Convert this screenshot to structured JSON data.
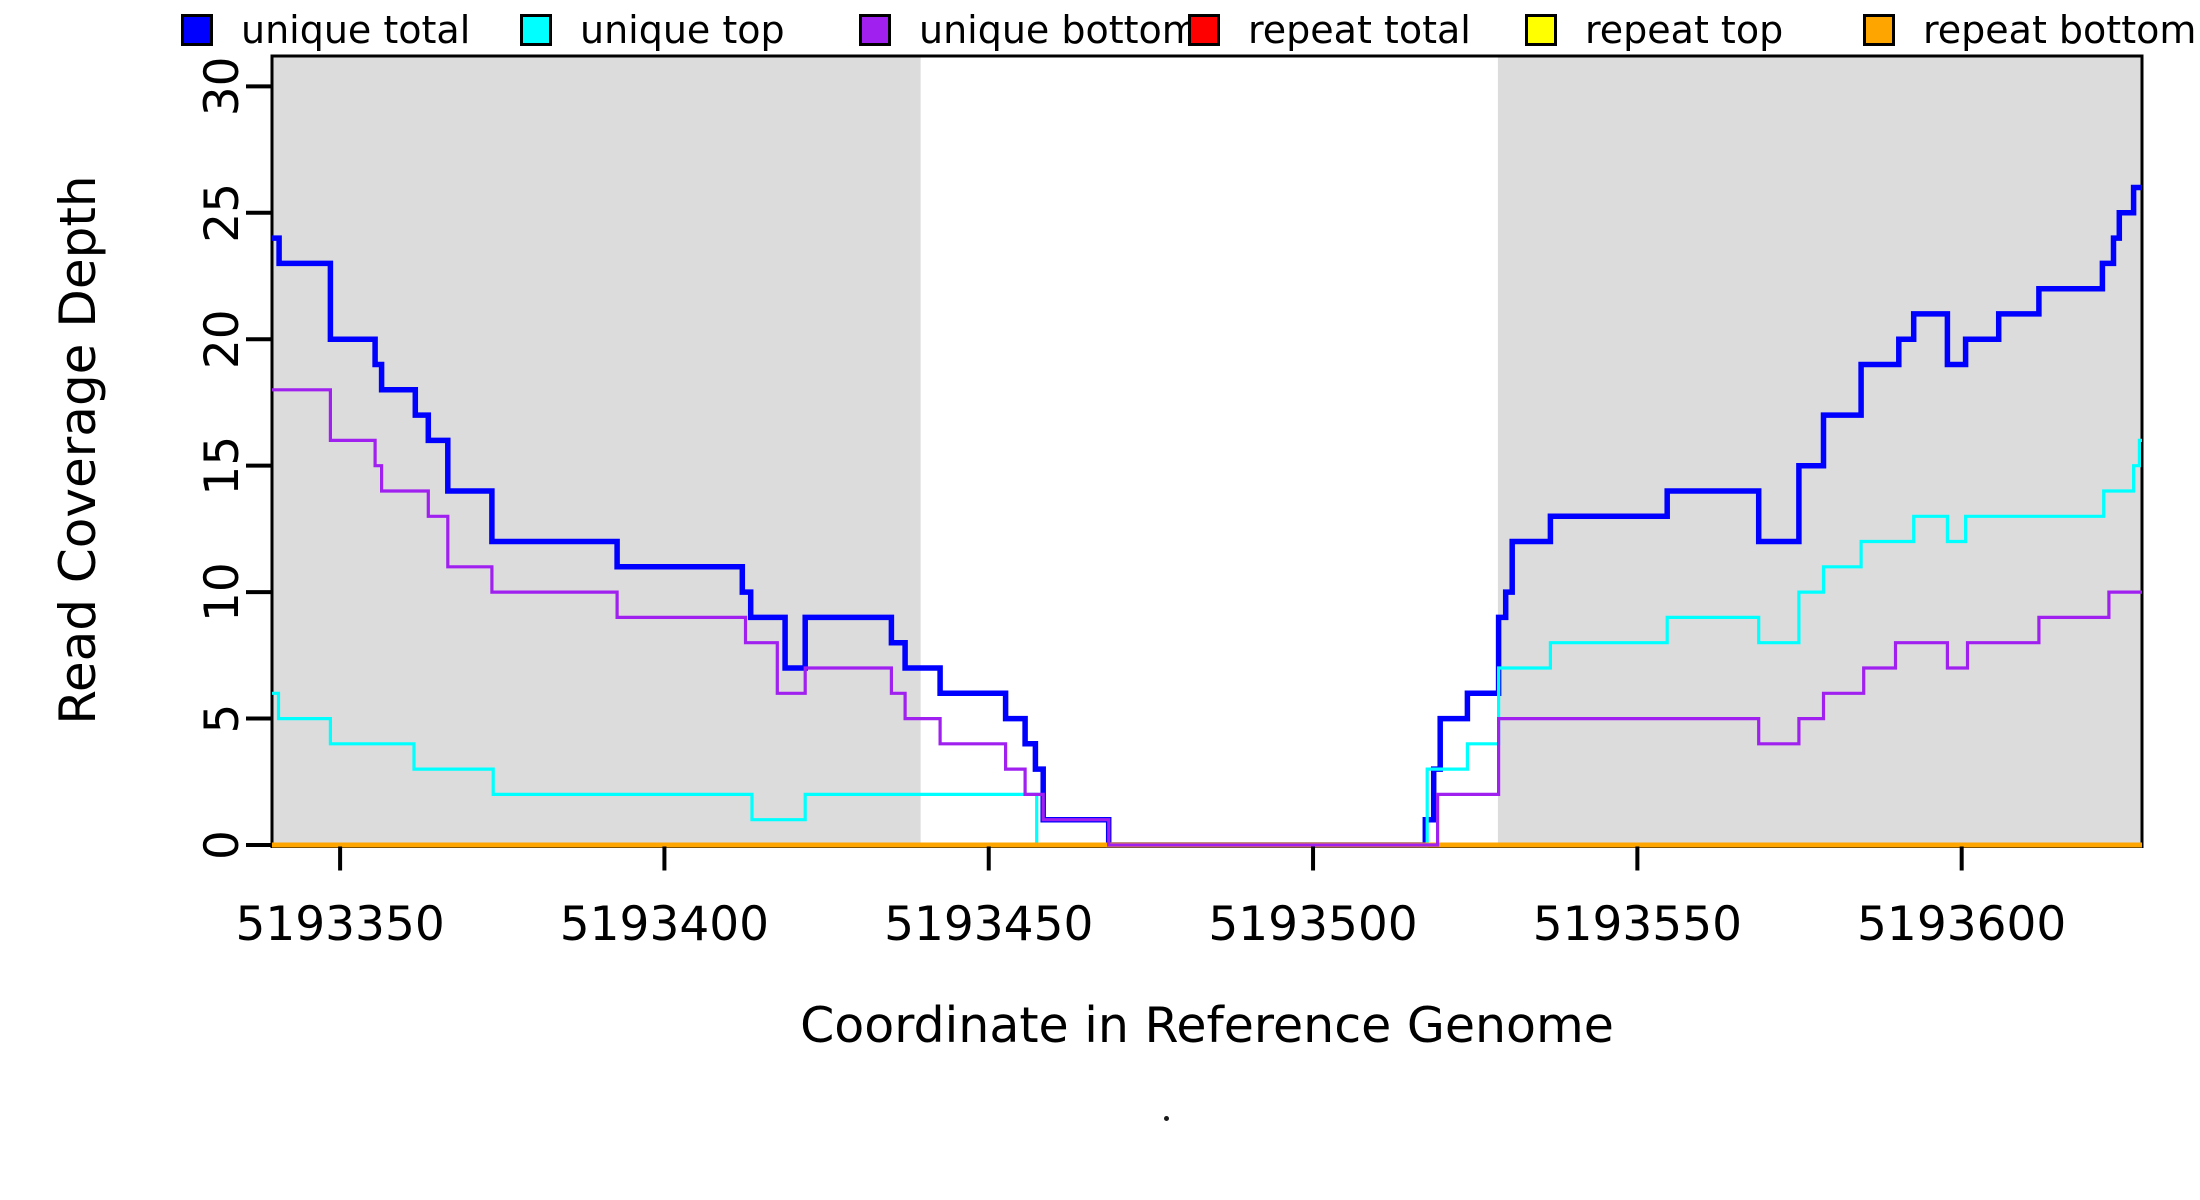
{
  "chart_data": {
    "type": "line",
    "line_style": "step",
    "title": "",
    "xlabel": "Coordinate in Reference Genome",
    "ylabel": "Read Coverage Depth",
    "xlim": [
      5193339.5,
      5193627.8
    ],
    "ylim": [
      0,
      31.2
    ],
    "x_ticks": [
      5193350,
      5193400,
      5193450,
      5193500,
      5193550,
      5193600
    ],
    "y_ticks": [
      0,
      5,
      10,
      15,
      20,
      25,
      30
    ],
    "grid": false,
    "legend_position": "bottom",
    "panel_border_color": "#000000",
    "shaded_region_color": "#dcdcdc",
    "shaded_regions": [
      [
        5193339.5,
        5193439.5
      ],
      [
        5193528.5,
        5193627.8
      ]
    ],
    "draw_order": [
      "unique total",
      "unique top",
      "repeat total",
      "repeat top",
      "repeat bottom",
      "unique bottom"
    ],
    "series": [
      {
        "name": "unique total",
        "color": "#0000ff",
        "line_width": 5.5,
        "points": [
          [
            5193339.5,
            24
          ],
          [
            5193340.6,
            23
          ],
          [
            5193348.5,
            20
          ],
          [
            5193355.4,
            19
          ],
          [
            5193356.4,
            18
          ],
          [
            5193361.6,
            17
          ],
          [
            5193363.6,
            16
          ],
          [
            5193366.6,
            14
          ],
          [
            5193373.4,
            12
          ],
          [
            5193392.7,
            11
          ],
          [
            5193412.0,
            10
          ],
          [
            5193413.3,
            9
          ],
          [
            5193418.6,
            7
          ],
          [
            5193421.7,
            9
          ],
          [
            5193435.0,
            8
          ],
          [
            5193437.1,
            7
          ],
          [
            5193442.5,
            6
          ],
          [
            5193452.6,
            5
          ],
          [
            5193455.6,
            4
          ],
          [
            5193457.2,
            3
          ],
          [
            5193458.4,
            1
          ],
          [
            5193468.5,
            0
          ],
          [
            5193517.3,
            1
          ],
          [
            5193518.6,
            3
          ],
          [
            5193519.6,
            5
          ],
          [
            5193523.8,
            6
          ],
          [
            5193528.6,
            9
          ],
          [
            5193529.7,
            10
          ],
          [
            5193530.7,
            12
          ],
          [
            5193536.6,
            13
          ],
          [
            5193554.6,
            14
          ],
          [
            5193568.7,
            12
          ],
          [
            5193574.9,
            15
          ],
          [
            5193578.7,
            17
          ],
          [
            5193584.5,
            19
          ],
          [
            5193590.3,
            20
          ],
          [
            5193592.6,
            21
          ],
          [
            5193597.8,
            19
          ],
          [
            5193600.6,
            20
          ],
          [
            5193605.7,
            21
          ],
          [
            5193611.9,
            22
          ],
          [
            5193621.7,
            23
          ],
          [
            5193623.4,
            24
          ],
          [
            5193624.3,
            25
          ],
          [
            5193626.5,
            26
          ]
        ]
      },
      {
        "name": "unique top",
        "color": "#00ffff",
        "line_width": 3.2,
        "points": [
          [
            5193339.5,
            6
          ],
          [
            5193340.5,
            5
          ],
          [
            5193348.5,
            4
          ],
          [
            5193361.4,
            3
          ],
          [
            5193373.6,
            2
          ],
          [
            5193413.5,
            1
          ],
          [
            5193421.7,
            2
          ],
          [
            5193457.4,
            0
          ],
          [
            5193517.6,
            3
          ],
          [
            5193523.8,
            4
          ],
          [
            5193528.6,
            7
          ],
          [
            5193536.6,
            8
          ],
          [
            5193554.6,
            9
          ],
          [
            5193568.7,
            8
          ],
          [
            5193574.9,
            10
          ],
          [
            5193578.7,
            11
          ],
          [
            5193584.5,
            12
          ],
          [
            5193592.6,
            13
          ],
          [
            5193597.8,
            12
          ],
          [
            5193600.6,
            13
          ],
          [
            5193621.9,
            14
          ],
          [
            5193626.5,
            15
          ],
          [
            5193627.4,
            16
          ]
        ]
      },
      {
        "name": "unique bottom",
        "color": "#a020f0",
        "line_width": 3.2,
        "points": [
          [
            5193339.5,
            18
          ],
          [
            5193348.5,
            16
          ],
          [
            5193355.4,
            15
          ],
          [
            5193356.4,
            14
          ],
          [
            5193363.6,
            13
          ],
          [
            5193366.6,
            11
          ],
          [
            5193373.4,
            10
          ],
          [
            5193392.7,
            9
          ],
          [
            5193412.5,
            8
          ],
          [
            5193417.4,
            6
          ],
          [
            5193421.7,
            7
          ],
          [
            5193435.0,
            6
          ],
          [
            5193437.1,
            5
          ],
          [
            5193442.5,
            4
          ],
          [
            5193452.6,
            3
          ],
          [
            5193455.6,
            2
          ],
          [
            5193458.4,
            1
          ],
          [
            5193468.5,
            0
          ],
          [
            5193519.2,
            2
          ],
          [
            5193528.6,
            5
          ],
          [
            5193568.7,
            4
          ],
          [
            5193574.9,
            5
          ],
          [
            5193578.7,
            6
          ],
          [
            5193584.9,
            7
          ],
          [
            5193589.8,
            8
          ],
          [
            5193597.8,
            7
          ],
          [
            5193600.9,
            8
          ],
          [
            5193611.9,
            9
          ],
          [
            5193622.7,
            10
          ]
        ]
      },
      {
        "name": "repeat total",
        "color": "#ff0000",
        "line_width": 3.2,
        "points": [
          [
            5193339.5,
            0
          ]
        ]
      },
      {
        "name": "repeat top",
        "color": "#ffff00",
        "line_width": 3.2,
        "points": [
          [
            5193339.5,
            0
          ]
        ]
      },
      {
        "name": "repeat bottom",
        "color": "#ffa500",
        "line_width": 5,
        "points": [
          [
            5193339.5,
            0
          ]
        ]
      }
    ]
  },
  "axes": {
    "x_tick_labels": [
      "5193350",
      "5193400",
      "5193450",
      "5193500",
      "5193550",
      "5193600"
    ],
    "y_tick_labels": [
      "0",
      "5",
      "10",
      "15",
      "20",
      "25",
      "30"
    ],
    "x_title": "Coordinate in Reference Genome",
    "y_title": "Read Coverage Depth"
  },
  "legend": {
    "items": [
      {
        "label": "unique total",
        "color": "#0000ff"
      },
      {
        "label": "unique top",
        "color": "#00ffff"
      },
      {
        "label": "unique bottom",
        "color": "#a020f0"
      },
      {
        "label": "repeat total",
        "color": "#ff0000"
      },
      {
        "label": "repeat top",
        "color": "#ffff00"
      },
      {
        "label": "repeat bottom",
        "color": "#ffa500"
      }
    ]
  }
}
